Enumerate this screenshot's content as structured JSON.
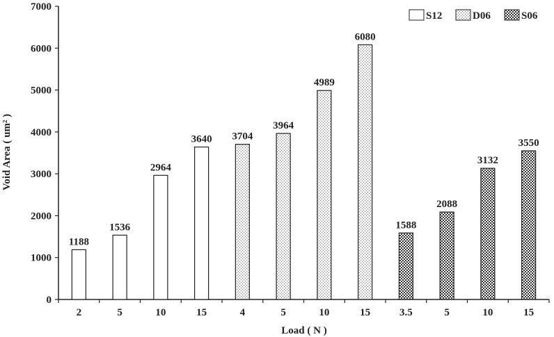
{
  "chart_data": {
    "type": "bar",
    "title": "",
    "xlabel": "Load ( N )",
    "ylabel": "Void Area ( um² )",
    "ylim": [
      0,
      7000
    ],
    "yticks": [
      0,
      1000,
      2000,
      3000,
      4000,
      5000,
      6000,
      7000
    ],
    "grid": false,
    "legend_position": "top-right",
    "categories": [
      "2",
      "5",
      "10",
      "15",
      "4",
      "5",
      "10",
      "15",
      "3.5",
      "5",
      "10",
      "15"
    ],
    "series": [
      {
        "name": "S12",
        "pattern": "plain",
        "values": [
          1188,
          1536,
          2964,
          3640,
          null,
          null,
          null,
          null,
          null,
          null,
          null,
          null
        ]
      },
      {
        "name": "D06",
        "pattern": "dotted",
        "values": [
          null,
          null,
          null,
          null,
          3704,
          3964,
          4989,
          6080,
          null,
          null,
          null,
          null
        ]
      },
      {
        "name": "S06",
        "pattern": "checker",
        "values": [
          null,
          null,
          null,
          null,
          null,
          null,
          null,
          null,
          1588,
          2088,
          3132,
          3550
        ]
      }
    ],
    "colors": {
      "axis": "#222222",
      "bar_edge": "#222222",
      "bar_fill": "#ffffff",
      "pattern_ink": "#333333"
    }
  }
}
